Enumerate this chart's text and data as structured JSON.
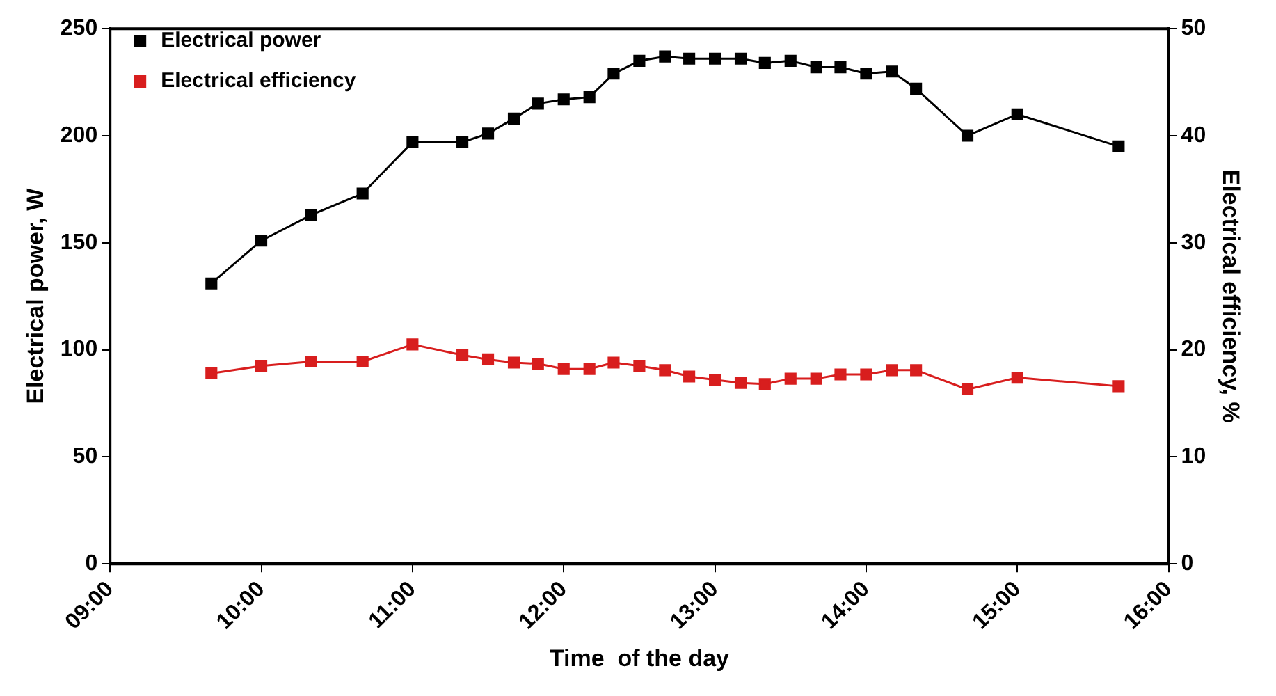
{
  "chart_data": {
    "type": "line",
    "xlabel": "Time  of the day",
    "ylabel": "Electrical power, W",
    "y2label": "Electrical efficiency, %",
    "xlim": [
      9,
      16
    ],
    "xticks": [
      {
        "value": 9,
        "label": "09:00"
      },
      {
        "value": 10,
        "label": "10:00"
      },
      {
        "value": 11,
        "label": "11:00"
      },
      {
        "value": 12,
        "label": "12:00"
      },
      {
        "value": 13,
        "label": "13:00"
      },
      {
        "value": 14,
        "label": "14:00"
      },
      {
        "value": 15,
        "label": "15:00"
      },
      {
        "value": 16,
        "label": "16:00"
      }
    ],
    "x": [
      9.67,
      10,
      10.33,
      10.67,
      11,
      11.33,
      11.5,
      11.67,
      11.83,
      12,
      12.17,
      12.33,
      12.5,
      12.67,
      12.83,
      13,
      13.17,
      13.33,
      13.5,
      13.67,
      13.83,
      14,
      14.17,
      14.33,
      14.67,
      15,
      15.67
    ],
    "ylim": [
      0,
      250
    ],
    "yticks": [
      0,
      50,
      100,
      150,
      200,
      250
    ],
    "y2lim": [
      0,
      50
    ],
    "y2ticks": [
      0,
      10,
      20,
      30,
      40,
      50
    ],
    "series": [
      {
        "name": "Electrical power",
        "color": "#000000",
        "values": [
          131,
          151,
          163,
          173,
          197,
          197,
          201,
          208,
          215,
          217,
          218,
          229,
          235,
          237,
          236,
          236,
          236,
          234,
          235,
          232,
          232,
          229,
          230,
          222,
          200,
          210,
          195
        ]
      },
      {
        "name": "Electrical efficiency",
        "color": "#d81e1e",
        "axis": "y2",
        "values": [
          17.8,
          18.5,
          18.9,
          18.9,
          20.5,
          19.5,
          19.1,
          18.8,
          18.7,
          18.2,
          18.2,
          18.8,
          18.5,
          18.1,
          17.5,
          17.2,
          16.9,
          16.8,
          17.3,
          17.3,
          17.7,
          17.7,
          18.1,
          18.1,
          16.3,
          17.4,
          16.6
        ]
      }
    ],
    "legend": "top left",
    "marker": "square",
    "line_style": "solid",
    "grid": false
  }
}
